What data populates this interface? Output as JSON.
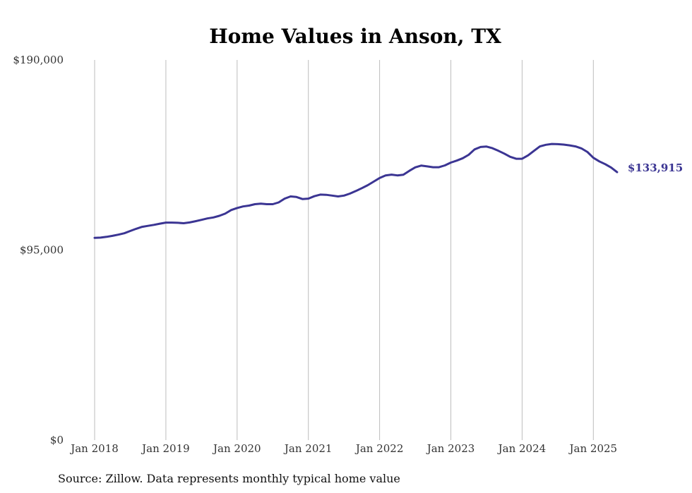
{
  "chart_data": {
    "type": "line",
    "title": "Home Values in Anson, TX",
    "source": "Source: Zillow. Data represents monthly typical home value",
    "xlabel": "",
    "ylabel": "",
    "ylim": [
      0,
      190000
    ],
    "y_ticks": [
      {
        "value": 0,
        "label": "$0"
      },
      {
        "value": 95000,
        "label": "$95,000"
      },
      {
        "value": 190000,
        "label": "$190,000"
      }
    ],
    "x_ticks": [
      {
        "value": 2018.0,
        "label": "Jan 2018"
      },
      {
        "value": 2019.0,
        "label": "Jan 2019"
      },
      {
        "value": 2020.0,
        "label": "Jan 2020"
      },
      {
        "value": 2021.0,
        "label": "Jan 2021"
      },
      {
        "value": 2022.0,
        "label": "Jan 2022"
      },
      {
        "value": 2023.0,
        "label": "Jan 2023"
      },
      {
        "value": 2024.0,
        "label": "Jan 2024"
      },
      {
        "value": 2025.0,
        "label": "Jan 2025"
      }
    ],
    "grid": {
      "vertical": true,
      "horizontal": false
    },
    "line_color": "#3b3593",
    "end_label": "$133,915",
    "series": [
      {
        "x": [
          2018.0,
          2018.083,
          2018.167,
          2018.25,
          2018.333,
          2018.417,
          2018.5,
          2018.583,
          2018.667,
          2018.75,
          2018.833,
          2018.917,
          2019.0,
          2019.083,
          2019.167,
          2019.25,
          2019.333,
          2019.417,
          2019.5,
          2019.583,
          2019.667,
          2019.75,
          2019.833,
          2019.917,
          2020.0,
          2020.083,
          2020.167,
          2020.25,
          2020.333,
          2020.417,
          2020.5,
          2020.583,
          2020.667,
          2020.75,
          2020.833,
          2020.917,
          2021.0,
          2021.083,
          2021.167,
          2021.25,
          2021.333,
          2021.417,
          2021.5,
          2021.583,
          2021.667,
          2021.75,
          2021.833,
          2021.917,
          2022.0,
          2022.083,
          2022.167,
          2022.25,
          2022.333,
          2022.417,
          2022.5,
          2022.583,
          2022.667,
          2022.75,
          2022.833,
          2022.917,
          2023.0,
          2023.083,
          2023.167,
          2023.25,
          2023.333,
          2023.417,
          2023.5,
          2023.583,
          2023.667,
          2023.75,
          2023.833,
          2023.917,
          2024.0,
          2024.083,
          2024.167,
          2024.25,
          2024.333,
          2024.417,
          2024.5,
          2024.583,
          2024.667,
          2024.75,
          2024.833,
          2024.917,
          2025.0,
          2025.083,
          2025.167,
          2025.25,
          2025.333
        ],
        "values": [
          101100,
          101200,
          101600,
          102100,
          102700,
          103400,
          104500,
          105600,
          106600,
          107100,
          107600,
          108200,
          108700,
          108700,
          108600,
          108400,
          108800,
          109400,
          110100,
          110800,
          111300,
          112100,
          113200,
          115000,
          116000,
          116800,
          117200,
          117900,
          118200,
          117900,
          117900,
          118800,
          120700,
          121800,
          121500,
          120500,
          120700,
          121900,
          122700,
          122600,
          122200,
          121800,
          122200,
          123200,
          124500,
          125900,
          127400,
          129200,
          131000,
          132300,
          132700,
          132300,
          132600,
          134600,
          136300,
          137200,
          136800,
          136400,
          136400,
          137300,
          138700,
          139700,
          140900,
          142600,
          145300,
          146500,
          146700,
          145900,
          144600,
          143200,
          141600,
          140600,
          140600,
          142300,
          144600,
          146800,
          147600,
          148000,
          147900,
          147700,
          147300,
          146800,
          145800,
          144000,
          141100,
          139300,
          137900,
          136200,
          133915
        ]
      }
    ]
  }
}
